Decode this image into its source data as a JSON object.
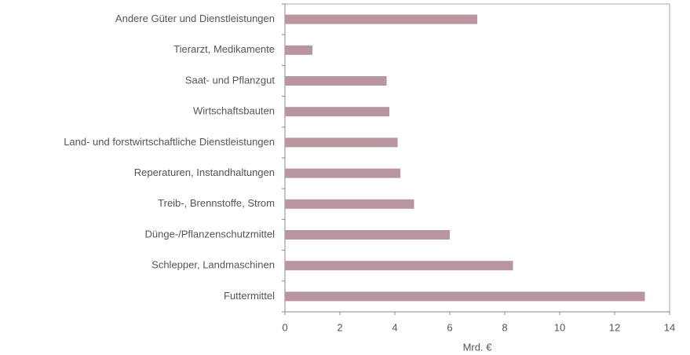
{
  "chart_data": {
    "type": "hbar",
    "categories": [
      "Andere Güter und Dienstleistungen",
      "Tierarzt, Medikamente",
      "Saat- und Pflanzgut",
      "Wirtschaftsbauten",
      "Land- und forstwirtschaftliche Dienstleistungen",
      "Reperaturen, Instandhaltungen",
      "Treib-, Brennstoffe, Strom",
      "Dünge-/Pflanzenschutzmittel",
      "Schlepper, Landmaschinen",
      "Futtermittel"
    ],
    "values": [
      7.0,
      1.0,
      3.7,
      3.8,
      4.1,
      4.2,
      4.7,
      6.0,
      8.3,
      13.1
    ],
    "color": "#b9959d",
    "x_label": "Mrd. €",
    "xlim": [
      0,
      14
    ],
    "xticks": [
      0,
      2,
      4,
      6,
      8,
      10,
      12,
      14
    ]
  }
}
